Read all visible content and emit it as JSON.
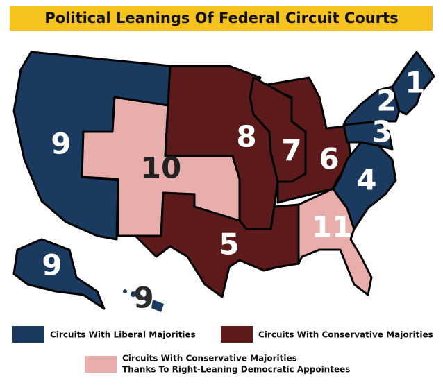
{
  "title": "Political Leanings Of Federal Circuit Courts",
  "circuit_labels": [
    "9",
    "10",
    "8",
    "7",
    "6",
    "5",
    "11",
    "4",
    "3",
    "2",
    "1",
    "9",
    "9"
  ],
  "legend": {
    "liberal": "Circuits With Liberal Majorities",
    "conservative": "Circuits With Conservative Majorities",
    "democratic_appointees": [
      "Circuits With Conservative Majorities",
      "Thanks To Right-Leaning Democratic Appointees"
    ]
  }
}
